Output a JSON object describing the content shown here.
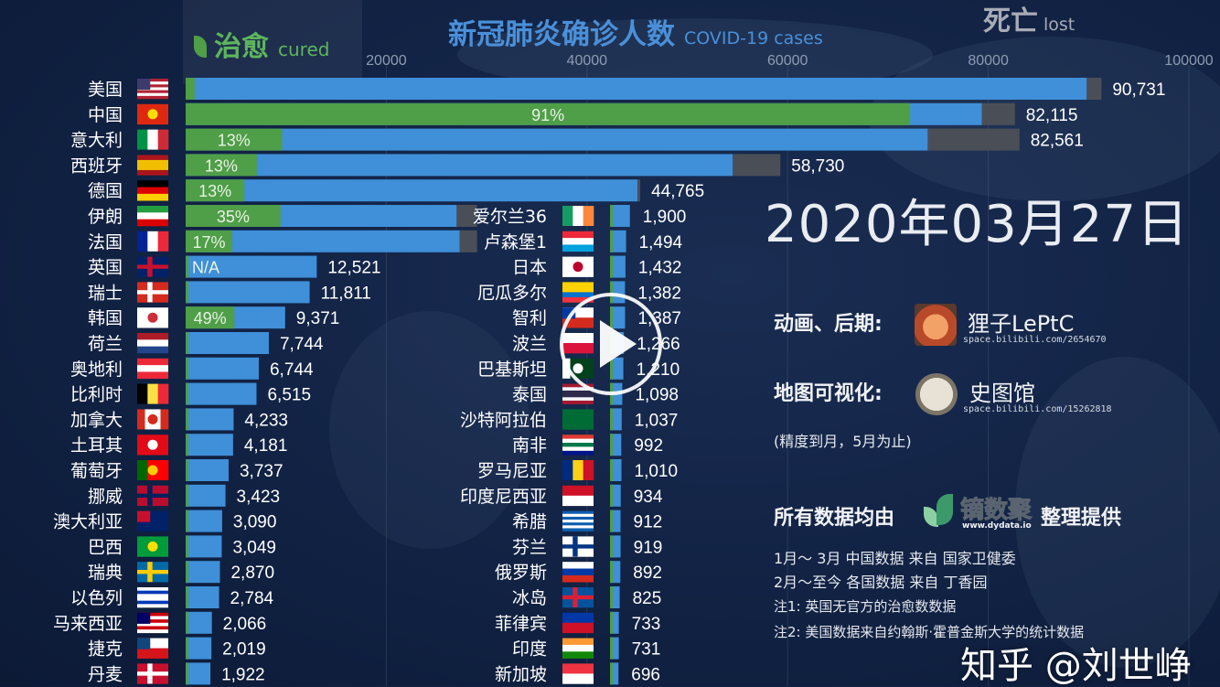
{
  "header": {
    "cured_label": "治愈",
    "cured_sub": "cured",
    "title": "新冠肺炎确诊人数",
    "title_sub": "COVID-19 cases",
    "lost_label": "死亡",
    "lost_sub": "lost"
  },
  "date": "2020年03月27日",
  "credits": {
    "animation_label": "动画、后期:",
    "animation_author": "狸子LePtC",
    "animation_url": "space.bilibili.com/2654670",
    "map_label": "地图可视化:",
    "map_author": "史图馆",
    "map_url": "space.bilibili.com/15262818",
    "map_note": "(精度到月，5月为止)",
    "data_label": "所有数据均由",
    "data_brand": "镝数聚",
    "data_brand_url": "www.dydata.io",
    "data_suffix": "整理提供",
    "source1": "1月～ 3月  中国数据  来自  国家卫健委",
    "source2": "2月～至今  各国数据  来自  丁香园",
    "note1": "注1: 英国无官方的治愈数数据",
    "note2": "注2: 美国数据来自约翰斯·霍普金斯大学的统计数据"
  },
  "watermark": "知乎 @刘世峥",
  "colors": {
    "cured": "#4f9e48",
    "confirmed": "#3f8fd9",
    "lost": "#4a4f57",
    "title": "#4a90d9"
  },
  "chart_data": {
    "type": "bar",
    "orientation": "horizontal",
    "stacked_segments": [
      "cured",
      "active",
      "lost"
    ],
    "xlim": [
      0,
      100000
    ],
    "x_ticks": [
      "20000",
      "40000",
      "60000",
      "80000",
      "100000"
    ],
    "series": [
      {
        "name": "美国",
        "value": 90731,
        "label": "90,731",
        "cured": 0.01,
        "lost": 0.016,
        "pct_label": "",
        "flag": {
          "d": "h",
          "c": [
            "#b22234",
            "#fff",
            "#b22234",
            "#fff",
            "#b22234",
            "#fff",
            "#b22234"
          ],
          "canton": "#3c3b6e"
        }
      },
      {
        "name": "中国",
        "value": 82115,
        "label": "82,115",
        "cured": 0.91,
        "lost": 0.04,
        "pct_label": "91%",
        "flag": {
          "d": "h",
          "c": [
            "#de2910"
          ],
          "dot": "#ffde00"
        }
      },
      {
        "name": "意大利",
        "value": 82561,
        "label": "82,561",
        "cured": 0.13,
        "lost": 0.11,
        "pct_label": "13%",
        "flag": {
          "d": "v",
          "c": [
            "#009246",
            "#fff",
            "#ce2b37"
          ]
        }
      },
      {
        "name": "西班牙",
        "value": 58730,
        "label": "58,730",
        "cured": 0.13,
        "lost": 0.08,
        "pct_label": "13%",
        "flag": {
          "d": "h",
          "c": [
            "#aa151b",
            "#f1bf00",
            "#f1bf00",
            "#aa151b"
          ]
        }
      },
      {
        "name": "德国",
        "value": 44765,
        "label": "44,765",
        "cured": 0.13,
        "lost": 0.006,
        "pct_label": "13%",
        "flag": {
          "d": "h",
          "c": [
            "#000",
            "#dd0000",
            "#ffce00"
          ]
        }
      },
      {
        "name": "伊朗",
        "value": 28500,
        "label": "",
        "cured": 0.35,
        "lost": 0.07,
        "pct_label": "35%",
        "flag": {
          "d": "h",
          "c": [
            "#239f40",
            "#fff",
            "#da0000"
          ]
        }
      },
      {
        "name": "法国",
        "value": 28500,
        "label": "",
        "cured": 0.17,
        "lost": 0.06,
        "pct_label": "17%",
        "flag": {
          "d": "v",
          "c": [
            "#002395",
            "#fff",
            "#ed2939"
          ]
        }
      },
      {
        "name": "英国",
        "value": 12521,
        "label": "12,521",
        "cured": 0.0,
        "lost": 0.0,
        "pct_label": "N/A",
        "flag": {
          "d": "h",
          "c": [
            "#012169"
          ],
          "cross": "#c8102e"
        }
      },
      {
        "name": "瑞士",
        "value": 11811,
        "label": "11,811",
        "cured": 0.01,
        "lost": 0.0,
        "pct_label": "",
        "flag": {
          "d": "h",
          "c": [
            "#d52b1e"
          ],
          "cross": "#fff"
        }
      },
      {
        "name": "韩国",
        "value": 9371,
        "label": "9,371",
        "cured": 0.49,
        "lost": 0.0,
        "pct_label": "49%",
        "flag": {
          "d": "h",
          "c": [
            "#fff"
          ],
          "dot": "#cd2e3a"
        }
      },
      {
        "name": "荷兰",
        "value": 7744,
        "label": "7,744",
        "cured": 0.0,
        "lost": 0.0,
        "pct_label": "",
        "flag": {
          "d": "h",
          "c": [
            "#ae1c28",
            "#fff",
            "#21468b"
          ]
        }
      },
      {
        "name": "奥地利",
        "value": 6744,
        "label": "6,744",
        "cured": 0.0,
        "lost": 0.0,
        "pct_label": "",
        "flag": {
          "d": "h",
          "c": [
            "#ed2939",
            "#fff",
            "#ed2939"
          ]
        }
      },
      {
        "name": "比利时",
        "value": 6515,
        "label": "6,515",
        "cured": 0.03,
        "lost": 0.0,
        "pct_label": "",
        "flag": {
          "d": "v",
          "c": [
            "#000",
            "#fae042",
            "#ed2939"
          ]
        }
      },
      {
        "name": "加拿大",
        "value": 4233,
        "label": "4,233",
        "cured": 0.0,
        "lost": 0.0,
        "pct_label": "",
        "flag": {
          "d": "v",
          "c": [
            "#d52b1e",
            "#fff",
            "#fff",
            "#d52b1e"
          ],
          "dot": "#d52b1e"
        }
      },
      {
        "name": "土耳其",
        "value": 4181,
        "label": "4,181",
        "cured": 0.0,
        "lost": 0.0,
        "pct_label": "",
        "flag": {
          "d": "h",
          "c": [
            "#e30a17"
          ],
          "dot": "#fff"
        }
      },
      {
        "name": "葡萄牙",
        "value": 3737,
        "label": "3,737",
        "cured": 0.0,
        "lost": 0.0,
        "pct_label": "",
        "flag": {
          "d": "v",
          "c": [
            "#006600",
            "#ff0000",
            "#ff0000"
          ],
          "dot": "#ffcc00"
        }
      },
      {
        "name": "挪威",
        "value": 3423,
        "label": "3,423",
        "cured": 0.0,
        "lost": 0.0,
        "pct_label": "",
        "flag": {
          "d": "h",
          "c": [
            "#ba0c2f"
          ],
          "cross": "#00205b"
        }
      },
      {
        "name": "澳大利亚",
        "value": 3090,
        "label": "3,090",
        "cured": 0.0,
        "lost": 0.0,
        "pct_label": "",
        "flag": {
          "d": "h",
          "c": [
            "#012169"
          ],
          "canton": "#c8102e"
        }
      },
      {
        "name": "巴西",
        "value": 3049,
        "label": "3,049",
        "cured": 0.0,
        "lost": 0.0,
        "pct_label": "",
        "flag": {
          "d": "h",
          "c": [
            "#009c3b"
          ],
          "dot": "#ffdf00"
        }
      },
      {
        "name": "瑞典",
        "value": 2870,
        "label": "2,870",
        "cured": 0.0,
        "lost": 0.0,
        "pct_label": "",
        "flag": {
          "d": "h",
          "c": [
            "#006aa7"
          ],
          "cross": "#fecc00"
        }
      },
      {
        "name": "以色列",
        "value": 2784,
        "label": "2,784",
        "cured": 0.0,
        "lost": 0.0,
        "pct_label": "",
        "flag": {
          "d": "h",
          "c": [
            "#fff",
            "#0038b8",
            "#fff",
            "#fff",
            "#0038b8",
            "#fff"
          ]
        }
      },
      {
        "name": "马来西亚",
        "value": 2066,
        "label": "2,066",
        "cured": 0.05,
        "lost": 0.0,
        "pct_label": "",
        "flag": {
          "d": "h",
          "c": [
            "#cc0001",
            "#fff",
            "#cc0001",
            "#fff",
            "#cc0001",
            "#fff"
          ],
          "canton": "#010066"
        }
      },
      {
        "name": "捷克",
        "value": 2019,
        "label": "2,019",
        "cured": 0.0,
        "lost": 0.0,
        "pct_label": "",
        "flag": {
          "d": "h",
          "c": [
            "#fff",
            "#d7141a"
          ],
          "canton": "#11457e"
        }
      },
      {
        "name": "丹麦",
        "value": 1922,
        "label": "1,922",
        "cured": 0.0,
        "lost": 0.0,
        "pct_label": "",
        "flag": {
          "d": "h",
          "c": [
            "#c8102e"
          ],
          "cross": "#fff"
        }
      },
      {
        "name": "爱尔兰36",
        "value": 1900,
        "label": "1,900",
        "cured": 0.0,
        "lost": 0.0,
        "pct_label": "",
        "flag": {
          "d": "v",
          "c": [
            "#169b62",
            "#fff",
            "#ff883e"
          ]
        }
      },
      {
        "name": "卢森堡1",
        "value": 1494,
        "label": "1,494",
        "cured": 0.0,
        "lost": 0.0,
        "pct_label": "",
        "flag": {
          "d": "h",
          "c": [
            "#ed2939",
            "#fff",
            "#00a1de"
          ]
        }
      },
      {
        "name": "日本",
        "value": 1432,
        "label": "1,432",
        "cured": 0.2,
        "lost": 0.0,
        "pct_label": "",
        "flag": {
          "d": "h",
          "c": [
            "#fff"
          ],
          "dot": "#bc002d"
        }
      },
      {
        "name": "厄瓜多尔",
        "value": 1382,
        "label": "1,382",
        "cured": 0.0,
        "lost": 0.0,
        "pct_label": "",
        "flag": {
          "d": "h",
          "c": [
            "#ffd100",
            "#ffd100",
            "#0072ce",
            "#ef3340"
          ]
        }
      },
      {
        "name": "智利",
        "value": 1387,
        "label": "1,387",
        "cured": 0.0,
        "lost": 0.0,
        "pct_label": "",
        "flag": {
          "d": "h",
          "c": [
            "#fff",
            "#d52b1e"
          ],
          "canton": "#0039a6"
        }
      },
      {
        "name": "波兰",
        "value": 1266,
        "label": "1,266",
        "cured": 0.0,
        "lost": 0.0,
        "pct_label": "",
        "flag": {
          "d": "h",
          "c": [
            "#fff",
            "#dc143c"
          ]
        }
      },
      {
        "name": "巴基斯坦",
        "value": 1210,
        "label": "1,210",
        "cured": 0.0,
        "lost": 0.0,
        "pct_label": "",
        "flag": {
          "d": "v",
          "c": [
            "#fff",
            "#01411c",
            "#01411c",
            "#01411c"
          ],
          "dot": "#fff"
        }
      },
      {
        "name": "泰国",
        "value": 1098,
        "label": "1,098",
        "cured": 0.0,
        "lost": 0.0,
        "pct_label": "",
        "flag": {
          "d": "h",
          "c": [
            "#a51931",
            "#f4f5f8",
            "#2d2a4a",
            "#2d2a4a",
            "#f4f5f8",
            "#a51931"
          ]
        }
      },
      {
        "name": "沙特阿拉伯",
        "value": 1037,
        "label": "1,037",
        "cured": 0.0,
        "lost": 0.0,
        "pct_label": "",
        "flag": {
          "d": "h",
          "c": [
            "#006c35"
          ]
        }
      },
      {
        "name": "南非",
        "value": 992,
        "label": "992",
        "cured": 0.0,
        "lost": 0.0,
        "pct_label": "",
        "flag": {
          "d": "h",
          "c": [
            "#e03c31",
            "#fff",
            "#007749",
            "#fff",
            "#001489"
          ]
        }
      },
      {
        "name": "罗马尼亚",
        "value": 1010,
        "label": "1,010",
        "cured": 0.0,
        "lost": 0.0,
        "pct_label": "",
        "flag": {
          "d": "v",
          "c": [
            "#002b7f",
            "#fcd116",
            "#ce1126"
          ]
        }
      },
      {
        "name": "印度尼西亚",
        "value": 934,
        "label": "934",
        "cured": 0.0,
        "lost": 0.0,
        "pct_label": "",
        "flag": {
          "d": "h",
          "c": [
            "#ce1126",
            "#fff"
          ]
        }
      },
      {
        "name": "希腊",
        "value": 912,
        "label": "912",
        "cured": 0.0,
        "lost": 0.0,
        "pct_label": "",
        "flag": {
          "d": "h",
          "c": [
            "#0d5eaf",
            "#fff",
            "#0d5eaf",
            "#fff",
            "#0d5eaf",
            "#fff",
            "#0d5eaf"
          ]
        }
      },
      {
        "name": "芬兰",
        "value": 919,
        "label": "919",
        "cured": 0.0,
        "lost": 0.0,
        "pct_label": "",
        "flag": {
          "d": "h",
          "c": [
            "#fff"
          ],
          "cross": "#003580"
        }
      },
      {
        "name": "俄罗斯",
        "value": 892,
        "label": "892",
        "cured": 0.0,
        "lost": 0.0,
        "pct_label": "",
        "flag": {
          "d": "h",
          "c": [
            "#fff",
            "#0039a6",
            "#d52b1e"
          ]
        }
      },
      {
        "name": "冰岛",
        "value": 825,
        "label": "825",
        "cured": 0.0,
        "lost": 0.0,
        "pct_label": "",
        "flag": {
          "d": "h",
          "c": [
            "#02529c"
          ],
          "cross": "#dc1e35"
        }
      },
      {
        "name": "菲律宾",
        "value": 733,
        "label": "733",
        "cured": 0.0,
        "lost": 0.0,
        "pct_label": "",
        "flag": {
          "d": "h",
          "c": [
            "#0038a8",
            "#ce1126"
          ]
        }
      },
      {
        "name": "印度",
        "value": 731,
        "label": "731",
        "cured": 0.0,
        "lost": 0.0,
        "pct_label": "",
        "flag": {
          "d": "h",
          "c": [
            "#ff9933",
            "#fff",
            "#138808"
          ]
        }
      },
      {
        "name": "新加坡",
        "value": 696,
        "label": "696",
        "cured": 0.0,
        "lost": 0.0,
        "pct_label": "",
        "flag": {
          "d": "h",
          "c": [
            "#ef3340",
            "#fff"
          ]
        }
      }
    ]
  }
}
